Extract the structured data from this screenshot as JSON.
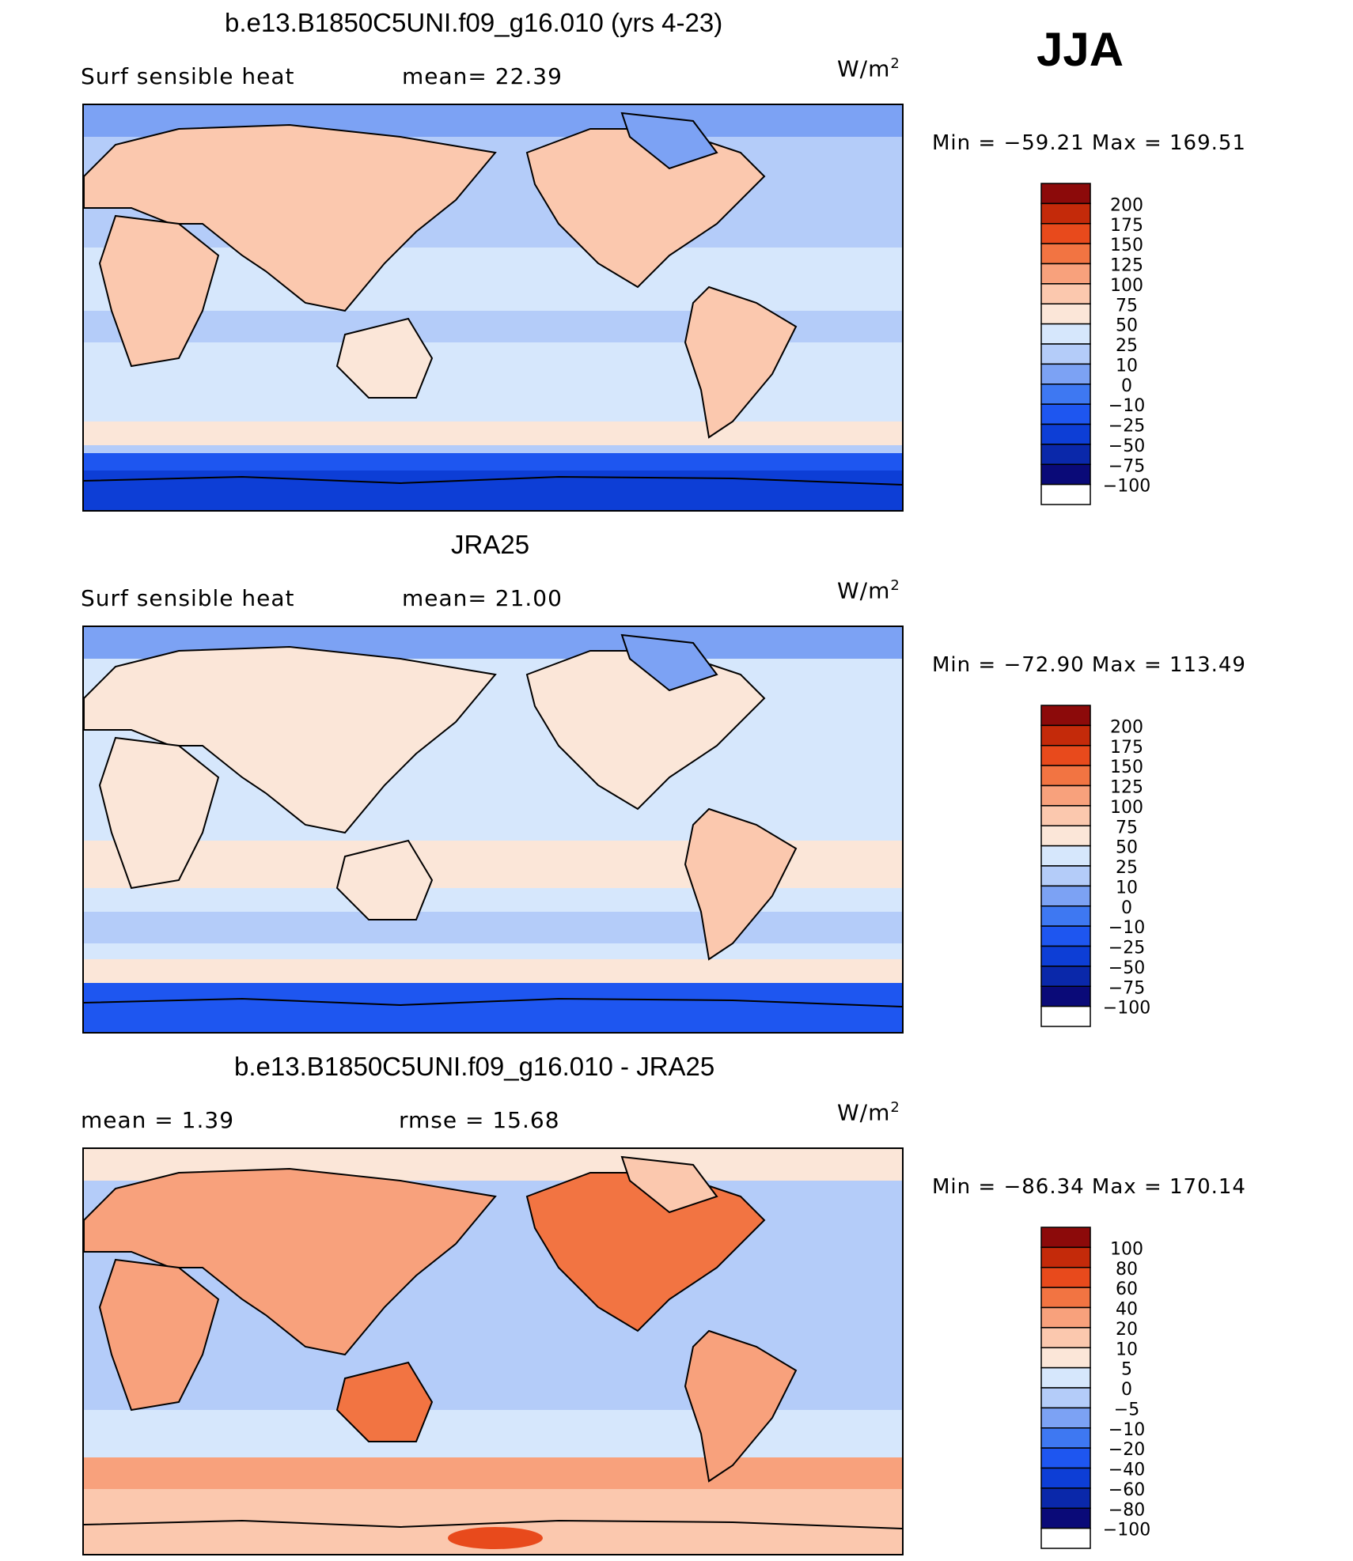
{
  "season": "JJA",
  "units_base": "W/m",
  "units_exp": "2",
  "colors": {
    "abs": [
      "#0a0a78",
      "#0a28aa",
      "#0d3ed6",
      "#1e56f0",
      "#3e78f2",
      "#7ca2f4",
      "#b4ccf9",
      "#d6e7fc",
      "#fbe6d8",
      "#fbc8ae",
      "#f8a17c",
      "#f27442",
      "#e84a1c",
      "#c42a0a",
      "#8c0a0a"
    ],
    "diff": [
      "#0a0a78",
      "#0a28aa",
      "#0d3ed6",
      "#1e56f0",
      "#3e78f2",
      "#7ca2f4",
      "#b4ccf9",
      "#d6e7fc",
      "#fbe6d8",
      "#fbc8ae",
      "#f8a17c",
      "#f27442",
      "#e84a1c",
      "#c42a0a",
      "#8c0a0a"
    ]
  },
  "panels": [
    {
      "id": "model",
      "title": "b.e13.B1850C5UNI.f09_g16.010 (yrs 4-23)",
      "left_label": "Surf  sensible  heat",
      "mid_label": "mean=   22.39",
      "min_max": "Min  =  −59.21  Max  =  169.51",
      "levels": [
        "200",
        "175",
        "150",
        "125",
        "100",
        "75",
        "50",
        "25",
        "10",
        "0",
        "−10",
        "−25",
        "−50",
        "−75",
        "−100"
      ]
    },
    {
      "id": "obs",
      "title": "JRA25",
      "left_label": "Surf  sensible  heat",
      "mid_label": "mean=   21.00",
      "min_max": "Min  =  −72.90  Max  =  113.49",
      "levels": [
        "200",
        "175",
        "150",
        "125",
        "100",
        "75",
        "50",
        "25",
        "10",
        "0",
        "−10",
        "−25",
        "−50",
        "−75",
        "−100"
      ]
    },
    {
      "id": "diff",
      "title": "b.e13.B1850C5UNI.f09_g16.010 - JRA25",
      "left_label": "mean  =      1.39",
      "mid_label": "rmse  =    15.68",
      "min_max": "Min  =  −86.34  Max  =  170.14",
      "levels": [
        "100",
        "80",
        "60",
        "40",
        "20",
        "10",
        "5",
        "0",
        "−5",
        "−10",
        "−20",
        "−40",
        "−60",
        "−80",
        "−100"
      ]
    }
  ],
  "chart_data": [
    {
      "type": "heatmap",
      "title": "b.e13.B1850C5UNI.f09_g16.010 (yrs 4-23)",
      "variable": "Surf sensible heat",
      "season": "JJA",
      "units": "W/m^2",
      "mean": 22.39,
      "min": -59.21,
      "max": 169.51,
      "contour_levels": [
        -100,
        -75,
        -50,
        -25,
        -10,
        0,
        10,
        25,
        50,
        75,
        100,
        125,
        150,
        175,
        200
      ]
    },
    {
      "type": "heatmap",
      "title": "JRA25",
      "variable": "Surf sensible heat",
      "season": "JJA",
      "units": "W/m^2",
      "mean": 21.0,
      "min": -72.9,
      "max": 113.49,
      "contour_levels": [
        -100,
        -75,
        -50,
        -25,
        -10,
        0,
        10,
        25,
        50,
        75,
        100,
        125,
        150,
        175,
        200
      ]
    },
    {
      "type": "heatmap",
      "title": "b.e13.B1850C5UNI.f09_g16.010 - JRA25",
      "season": "JJA",
      "units": "W/m^2",
      "mean": 1.39,
      "rmse": 15.68,
      "min": -86.34,
      "max": 170.14,
      "contour_levels": [
        -100,
        -80,
        -60,
        -40,
        -20,
        -10,
        -5,
        0,
        5,
        10,
        20,
        40,
        60,
        80,
        100
      ]
    }
  ]
}
